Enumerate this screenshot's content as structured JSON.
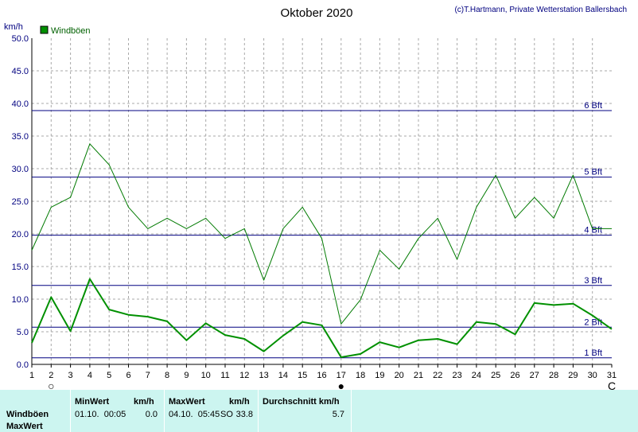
{
  "title": "Oktober 2020",
  "credit": "(c)T.Hartmann, Private Wetterstation Ballersbach",
  "chart_data": {
    "type": "line",
    "title": "Oktober 2020",
    "ylabel": "km/h",
    "ylim": [
      0,
      50
    ],
    "yticks": [
      "0.0",
      "5.0",
      "10.0",
      "15.0",
      "20.0",
      "25.0",
      "30.0",
      "35.0",
      "40.0",
      "45.0",
      "50.0"
    ],
    "x": [
      1,
      2,
      3,
      4,
      5,
      6,
      7,
      8,
      9,
      10,
      11,
      12,
      13,
      14,
      15,
      16,
      17,
      18,
      19,
      20,
      21,
      22,
      23,
      24,
      25,
      26,
      27,
      28,
      29,
      30,
      31
    ],
    "xticks": [
      "1",
      "2",
      "3",
      "4",
      "5",
      "6",
      "7",
      "8",
      "9",
      "10",
      "11",
      "12",
      "13",
      "14",
      "15",
      "16",
      "17",
      "18",
      "19",
      "20",
      "21",
      "22",
      "23",
      "24",
      "25",
      "26",
      "27",
      "28",
      "29",
      "30",
      "31"
    ],
    "series": [
      {
        "name": "Windböen",
        "color": "#007a00",
        "values": [
          17.5,
          24.1,
          25.6,
          33.8,
          30.6,
          24.1,
          20.8,
          22.4,
          20.8,
          22.4,
          19.3,
          20.8,
          12.9,
          20.8,
          24.1,
          19.3,
          6.2,
          9.9,
          17.5,
          14.6,
          19.3,
          22.4,
          16.1,
          24.1,
          29.0,
          22.4,
          25.6,
          22.4,
          29.0,
          20.8,
          20.8
        ]
      },
      {
        "color": "#009000",
        "values": [
          3.3,
          10.3,
          5.1,
          13.1,
          8.4,
          7.6,
          7.3,
          6.6,
          3.7,
          6.3,
          4.5,
          3.9,
          2.0,
          4.4,
          6.5,
          6.0,
          1.1,
          1.6,
          3.4,
          2.6,
          3.7,
          3.9,
          3.1,
          6.5,
          6.2,
          4.6,
          9.4,
          9.1,
          9.3,
          7.5,
          5.4
        ]
      }
    ],
    "beaufort": [
      {
        "label": "1 Bft",
        "value": 1.0
      },
      {
        "label": "2 Bft",
        "value": 5.7
      },
      {
        "label": "3 Bft",
        "value": 12.1
      },
      {
        "label": "4 Bft",
        "value": 19.8
      },
      {
        "label": "5 Bft",
        "value": 28.7
      },
      {
        "label": "6 Bft",
        "value": 38.9
      }
    ],
    "moon_phases": [
      {
        "day": 2,
        "symbol": "○"
      },
      {
        "day": 17,
        "symbol": "●"
      },
      {
        "day": 31,
        "symbol": "C"
      }
    ],
    "grid": true,
    "legend": "top-left"
  },
  "stats": {
    "headers": {
      "minwert": "MinWert",
      "min_unit": "km/h",
      "maxwert": "MaxWert",
      "max_unit": "km/h",
      "avg": "Durchschnitt km/h"
    },
    "row_label": "Windböen",
    "row_label2": "MaxWert",
    "min_time": "01.10.  00:05",
    "min_value": "0.0",
    "max_time": "04.10.  05:45",
    "max_dir": "SO",
    "max_value": "33.8",
    "avg_value": "5.7"
  }
}
